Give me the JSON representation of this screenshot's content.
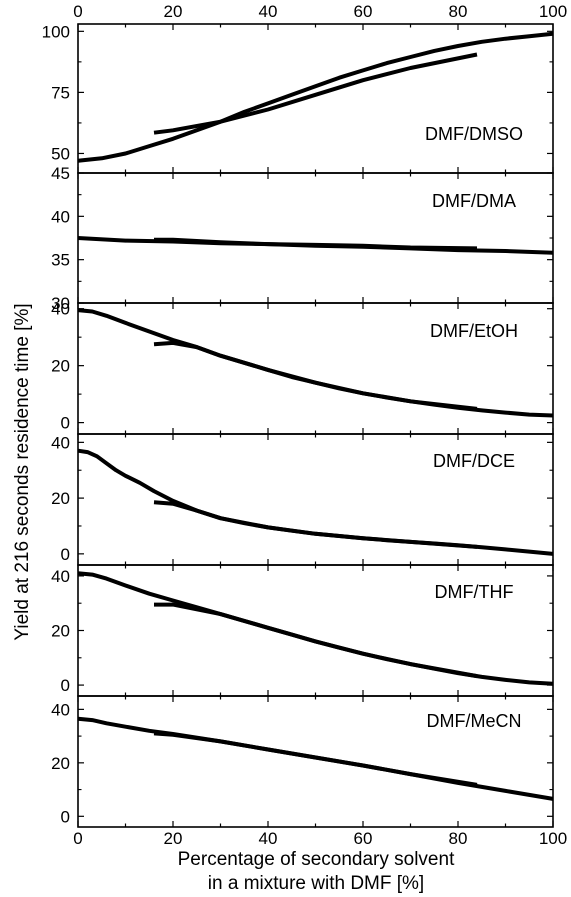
{
  "chart_data": {
    "type": "line",
    "shared_x_axis": {
      "label_line1": "Percentage of secondary solvent",
      "label_line2": "in a mixture with DMF [%]",
      "xlim": [
        0,
        100
      ],
      "ticks": [
        0,
        20,
        40,
        60,
        80,
        100
      ],
      "tick_labels": [
        "0",
        "20",
        "40",
        "60",
        "80",
        "100"
      ]
    },
    "ylabel": "Yield at 216 seconds residence time [%]",
    "grid": false,
    "panels": [
      {
        "label": "DMF/DMSO",
        "ylim": [
          42,
          103
        ],
        "yticks": [
          50,
          75,
          100
        ],
        "ytick_labels": [
          "50",
          "75",
          "100"
        ],
        "series": [
          {
            "x": [
              0,
              5,
              10,
              15,
              20,
              25,
              30,
              35,
              40,
              45,
              50,
              55,
              60,
              65,
              70,
              75,
              80,
              85,
              90,
              95,
              100
            ],
            "y": [
              47,
              48,
              50,
              53,
              56,
              59.5,
              63,
              67,
              70.5,
              74,
              77.5,
              81,
              84,
              87,
              89.5,
              92,
              94,
              95.7,
              97,
              98,
              99
            ]
          },
          {
            "x": [
              16,
              20,
              30,
              40,
              50,
              60,
              70,
              84
            ],
            "y": [
              58.5,
              59.5,
              63,
              68,
              74,
              80,
              85,
              90.5
            ]
          }
        ]
      },
      {
        "label": "DMF/DMA",
        "ylim": [
          30,
          45
        ],
        "yticks": [
          30,
          35,
          40,
          45
        ],
        "ytick_labels": [
          "30",
          "35",
          "40",
          "45"
        ],
        "series": [
          {
            "x": [
              0,
              10,
              20,
              30,
              40,
              50,
              60,
              70,
              80,
              90,
              100
            ],
            "y": [
              37.5,
              37.2,
              37.1,
              36.9,
              36.8,
              36.6,
              36.5,
              36.3,
              36.1,
              36.0,
              35.8
            ]
          },
          {
            "x": [
              16,
              20,
              30,
              40,
              50,
              60,
              70,
              84
            ],
            "y": [
              37.3,
              37.3,
              37.0,
              36.8,
              36.7,
              36.6,
              36.4,
              36.3
            ]
          }
        ]
      },
      {
        "label": "DMF/EtOH",
        "ylim": [
          -4,
          42
        ],
        "yticks": [
          0,
          20,
          40
        ],
        "ytick_labels": [
          "0",
          "20",
          "40"
        ],
        "series": [
          {
            "x": [
              0,
              3,
              6,
              10,
              15,
              20,
              25,
              30,
              35,
              40,
              45,
              50,
              55,
              60,
              65,
              70,
              75,
              80,
              85,
              90,
              95,
              100
            ],
            "y": [
              39.5,
              39,
              37.5,
              35,
              32,
              29,
              26.5,
              23.5,
              21,
              18.5,
              16,
              14,
              12,
              10.3,
              8.8,
              7.5,
              6.3,
              5.2,
              4.3,
              3.5,
              2.8,
              2.5
            ]
          },
          {
            "x": [
              16,
              20,
              25,
              30,
              40,
              50,
              60,
              70,
              84
            ],
            "y": [
              27.5,
              28,
              26.5,
              23.5,
              18.5,
              14,
              10.3,
              7.5,
              4.8
            ]
          }
        ]
      },
      {
        "label": "DMF/DCE",
        "ylim": [
          -4,
          43
        ],
        "yticks": [
          0,
          20,
          40
        ],
        "ytick_labels": [
          "0",
          "20",
          "40"
        ],
        "series": [
          {
            "x": [
              0,
              2,
              4,
              6,
              8,
              10,
              13,
              16,
              20,
              25,
              30,
              35,
              40,
              45,
              50,
              55,
              60,
              65,
              70,
              75,
              80,
              85,
              90,
              95,
              100
            ],
            "y": [
              37,
              36.5,
              35,
              32.5,
              30,
              28,
              25.5,
              22.5,
              19,
              15.5,
              12.8,
              11,
              9.5,
              8.3,
              7.2,
              6.4,
              5.6,
              4.9,
              4.3,
              3.7,
              3.1,
              2.4,
              1.6,
              0.8,
              0
            ]
          },
          {
            "x": [
              16,
              20,
              25,
              30,
              40,
              50,
              60,
              70,
              84
            ],
            "y": [
              18.5,
              18,
              15.5,
              12.8,
              9.5,
              7.2,
              5.6,
              4.3,
              2.5
            ]
          }
        ]
      },
      {
        "label": "DMF/THF",
        "ylim": [
          -4,
          44
        ],
        "yticks": [
          0,
          20,
          40
        ],
        "ytick_labels": [
          "0",
          "20",
          "40"
        ],
        "series": [
          {
            "x": [
              0,
              3,
              6,
              10,
              15,
              20,
              25,
              30,
              35,
              40,
              45,
              50,
              55,
              60,
              65,
              70,
              75,
              80,
              85,
              90,
              95,
              100
            ],
            "y": [
              41,
              40.5,
              39,
              36.5,
              33.5,
              31,
              28.5,
              26,
              23.5,
              21,
              18.5,
              16,
              13.7,
              11.5,
              9.5,
              7.7,
              6,
              4.4,
              3,
              1.9,
              1,
              0.5
            ]
          },
          {
            "x": [
              16,
              20,
              30,
              40,
              50,
              60,
              70,
              84
            ],
            "y": [
              29.5,
              29.5,
              26,
              21,
              16,
              11.5,
              7.7,
              3.3
            ]
          }
        ]
      },
      {
        "label": "DMF/MeCN",
        "ylim": [
          -4,
          45
        ],
        "yticks": [
          0,
          20,
          40
        ],
        "ytick_labels": [
          "0",
          "20",
          "40"
        ],
        "series": [
          {
            "x": [
              0,
              3,
              6,
              10,
              15,
              20,
              30,
              40,
              50,
              60,
              70,
              80,
              90,
              100
            ],
            "y": [
              36.5,
              36,
              34.8,
              33.5,
              32,
              30.8,
              28,
              25,
              22,
              19,
              15.8,
              12.5,
              9.5,
              6.5
            ]
          },
          {
            "x": [
              16,
              20,
              30,
              40,
              50,
              60,
              70,
              84
            ],
            "y": [
              31,
              30.5,
              28,
              25,
              22,
              19,
              15.8,
              11.8
            ]
          }
        ]
      }
    ]
  }
}
